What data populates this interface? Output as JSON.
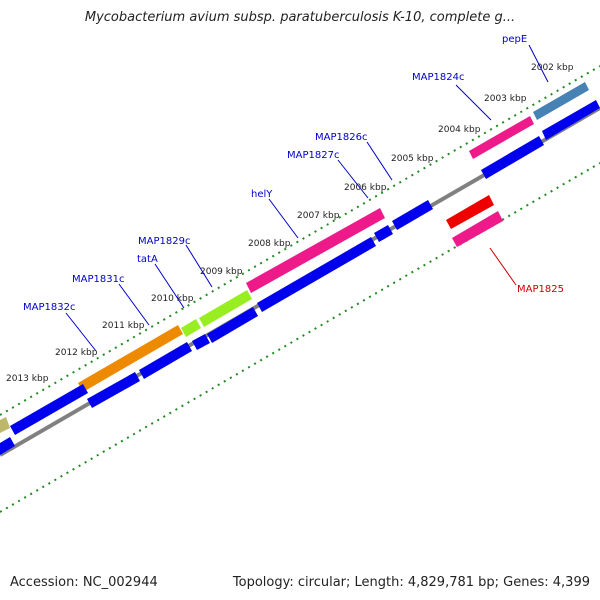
{
  "header": {
    "title": "Mycobacterium avium subsp. paratuberculosis K-10, complete g..."
  },
  "footer": {
    "accession": "Accession: NC_002944",
    "summary": "Topology: circular; Length: 4,829,781 bp; Genes: 4,399"
  },
  "ticks": [
    "2002 kbp",
    "2003 kbp",
    "2004 kbp",
    "2005 kbp",
    "2006 kbp",
    "2007 kbp",
    "2008 kbp",
    "2009 kbp",
    "2010 kbp",
    "2011 kbp",
    "2012 kbp",
    "2013 kbp"
  ],
  "gene_labels": {
    "pepE": "pepE",
    "MAP1824c": "MAP1824c",
    "MAP1826c": "MAP1826c",
    "MAP1827c": "MAP1827c",
    "helY": "helY",
    "MAP1829c": "MAP1829c",
    "tatA": "tatA",
    "MAP1831c": "MAP1831c",
    "MAP1832c": "MAP1832c",
    "MAP1825": "MAP1825"
  },
  "colors": {
    "blue_gene": "#0000ee",
    "magenta_gene": "#ee1a8a",
    "orange_gene": "#ee8a00",
    "green_gene": "#99ee22",
    "steel_gene": "#4682b4",
    "red_gene": "#ee0000",
    "olive_gene": "#bdb76b",
    "backbone": "#808080",
    "tick_green": "#228b22",
    "label_blue": "#0000cc",
    "label_red": "#cc0000"
  }
}
